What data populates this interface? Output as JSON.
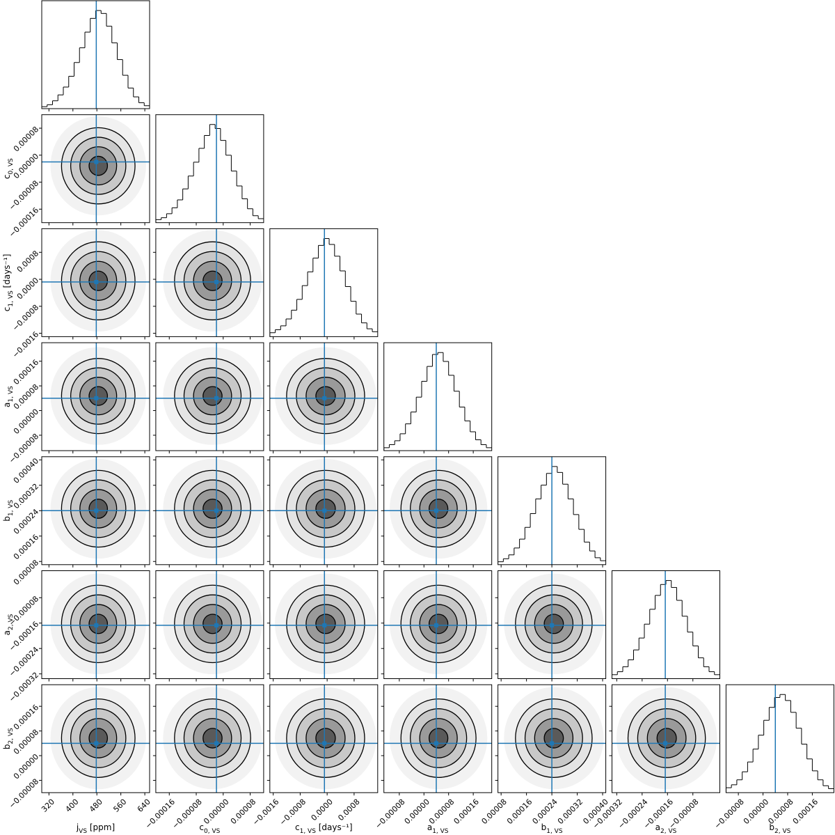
{
  "chart_data": {
    "type": "corner",
    "truth_color": "#1f77b4",
    "params": [
      {
        "label": {
          "base": "j",
          "sub": "VS",
          "suffix": " [ppm]"
        },
        "truth": 478,
        "lim": [
          296,
          656
        ],
        "ticks": [
          320,
          400,
          480,
          560,
          640
        ],
        "bins": [
          296,
          314,
          332,
          350,
          368,
          386,
          404,
          422,
          440,
          458,
          476,
          494,
          512,
          530,
          548,
          566,
          584,
          602,
          620,
          638,
          656
        ],
        "counts": [
          2,
          4,
          8,
          14,
          22,
          33,
          47,
          62,
          78,
          92,
          100,
          97,
          84,
          67,
          50,
          34,
          21,
          12,
          6,
          3
        ]
      },
      {
        "label": {
          "base": "c",
          "sub": "0, VS"
        },
        "truth": -2e-05,
        "lim": [
          -0.0002,
          0.00012
        ],
        "ticks": [
          {
            "value": -0.00016,
            "label": "−0.00016"
          },
          {
            "value": -8e-05,
            "label": "−0.00008"
          },
          {
            "value": 0,
            "label": "0.00000"
          },
          {
            "value": 8e-05,
            "label": "0.00008"
          }
        ],
        "bins": [
          -0.0002,
          -0.000184,
          -0.000168,
          -0.000152,
          -0.000136,
          -0.00012,
          -0.000104,
          -8.8e-05,
          -7.2e-05,
          -5.6e-05,
          -4e-05,
          -2.4e-05,
          -8e-06,
          8e-06,
          2.4e-05,
          4e-05,
          5.6e-05,
          7.2e-05,
          8.8e-05,
          0.000104,
          0.00012
        ],
        "counts": [
          3,
          5,
          9,
          15,
          23,
          34,
          47,
          61,
          75,
          88,
          99,
          95,
          83,
          68,
          52,
          37,
          24,
          14,
          7,
          4
        ]
      },
      {
        "label": {
          "base": "c",
          "sub": "1, VS",
          "suffix": " [days⁻¹]"
        },
        "truth": -8e-05,
        "lim": [
          -0.0017,
          0.0015
        ],
        "ticks": [
          {
            "value": -0.0016,
            "label": "−0.0016"
          },
          {
            "value": -0.0008,
            "label": "−0.0008"
          },
          {
            "value": 0,
            "label": "0.0000"
          },
          {
            "value": 0.0008,
            "label": "0.0008"
          }
        ],
        "bins": [
          -0.0017,
          -0.00154,
          -0.00138,
          -0.00122,
          -0.00106,
          -0.0009,
          -0.00074,
          -0.00058,
          -0.00042,
          -0.00026,
          -0.0001,
          6e-05,
          0.00022,
          0.00038,
          0.00054,
          0.0007,
          0.00086,
          0.00102,
          0.00118,
          0.00134,
          0.0015
        ],
        "counts": [
          4,
          7,
          11,
          18,
          27,
          38,
          52,
          66,
          80,
          93,
          100,
          94,
          82,
          67,
          51,
          36,
          23,
          14,
          8,
          5
        ]
      },
      {
        "label": {
          "base": "a",
          "sub": "1, VS"
        },
        "truth": 4e-05,
        "lim": [
          -0.00013,
          0.00022
        ],
        "ticks": [
          {
            "value": -8e-05,
            "label": "−0.00008"
          },
          {
            "value": 0,
            "label": "0.00000"
          },
          {
            "value": 8e-05,
            "label": "0.00008"
          },
          {
            "value": 0.00016,
            "label": "0.00016"
          }
        ],
        "bins": [
          -0.00013,
          -0.0001125,
          -9.5e-05,
          -7.75e-05,
          -6e-05,
          -4.25e-05,
          -2.5e-05,
          -7.5e-06,
          1e-05,
          2.75e-05,
          4.5e-05,
          6.25e-05,
          8e-05,
          9.75e-05,
          0.000115,
          0.0001325,
          0.00015,
          0.0001675,
          0.000185,
          0.0002025,
          0.00022
        ],
        "counts": [
          3,
          6,
          10,
          17,
          27,
          39,
          54,
          70,
          85,
          97,
          99,
          90,
          76,
          60,
          44,
          30,
          19,
          11,
          6,
          3
        ]
      },
      {
        "label": {
          "base": "b",
          "sub": "1, VS"
        },
        "truth": 0.00024,
        "lim": [
          7e-05,
          0.00041
        ],
        "ticks": [
          {
            "value": 8e-05,
            "label": "0.00008"
          },
          {
            "value": 0.00016,
            "label": "0.00016"
          },
          {
            "value": 0.00024,
            "label": "0.00024"
          },
          {
            "value": 0.00032,
            "label": "0.00032"
          },
          {
            "value": 0.0004,
            "label": "0.00040"
          }
        ],
        "bins": [
          7e-05,
          8.7e-05,
          0.000104,
          0.000121,
          0.000138,
          0.000155,
          0.000172,
          0.000189,
          0.000206,
          0.000223,
          0.00024,
          0.000257,
          0.000274,
          0.000291,
          0.000308,
          0.000325,
          0.000342,
          0.000359,
          0.000376,
          0.000393,
          0.00041
        ],
        "counts": [
          3,
          6,
          10,
          17,
          26,
          38,
          52,
          67,
          81,
          93,
          100,
          94,
          82,
          67,
          51,
          36,
          23,
          14,
          7,
          4
        ]
      },
      {
        "label": {
          "base": "a",
          "sub": "2, VS"
        },
        "truth": -0.000167,
        "lim": [
          -0.000335,
          5e-06
        ],
        "ticks": [
          {
            "value": -0.00032,
            "label": "−0.00032"
          },
          {
            "value": -0.00024,
            "label": "−0.00024"
          },
          {
            "value": -0.00016,
            "label": "−0.00016"
          },
          {
            "value": -8e-05,
            "label": "−0.00008"
          }
        ],
        "bins": [
          -0.000335,
          -0.000318,
          -0.000301,
          -0.000284,
          -0.000267,
          -0.00025,
          -0.000233,
          -0.000216,
          -0.000199,
          -0.000182,
          -0.000165,
          -0.000148,
          -0.000131,
          -0.000114,
          -9.7e-05,
          -8e-05,
          -6.3e-05,
          -4.6e-05,
          -2.9e-05,
          -1.2e-05,
          5e-06
        ],
        "counts": [
          4,
          7,
          12,
          19,
          29,
          41,
          55,
          70,
          84,
          95,
          99,
          92,
          79,
          63,
          47,
          33,
          21,
          12,
          7,
          4
        ]
      },
      {
        "label": {
          "base": "b",
          "sub": "2, VS"
        },
        "truth": 4e-05,
        "lim": [
          -0.00012,
          0.00023
        ],
        "ticks": [
          {
            "value": -8e-05,
            "label": "−0.00008"
          },
          {
            "value": 0,
            "label": "0.00000"
          },
          {
            "value": 8e-05,
            "label": "0.00008"
          },
          {
            "value": 0.00016,
            "label": "0.00016"
          }
        ],
        "bins": [
          -0.00012,
          -0.0001025,
          -8.5e-05,
          -6.75e-05,
          -5e-05,
          -3.25e-05,
          -1.5e-05,
          2.5e-06,
          2e-05,
          3.75e-05,
          5.5e-05,
          7.25e-05,
          9e-05,
          0.0001075,
          0.000125,
          0.0001425,
          0.00016,
          0.0001775,
          0.000195,
          0.0002125,
          0.00023
        ],
        "counts": [
          5,
          8,
          13,
          21,
          31,
          44,
          58,
          73,
          86,
          96,
          99,
          93,
          81,
          65,
          49,
          34,
          22,
          13,
          7,
          4
        ]
      }
    ]
  }
}
